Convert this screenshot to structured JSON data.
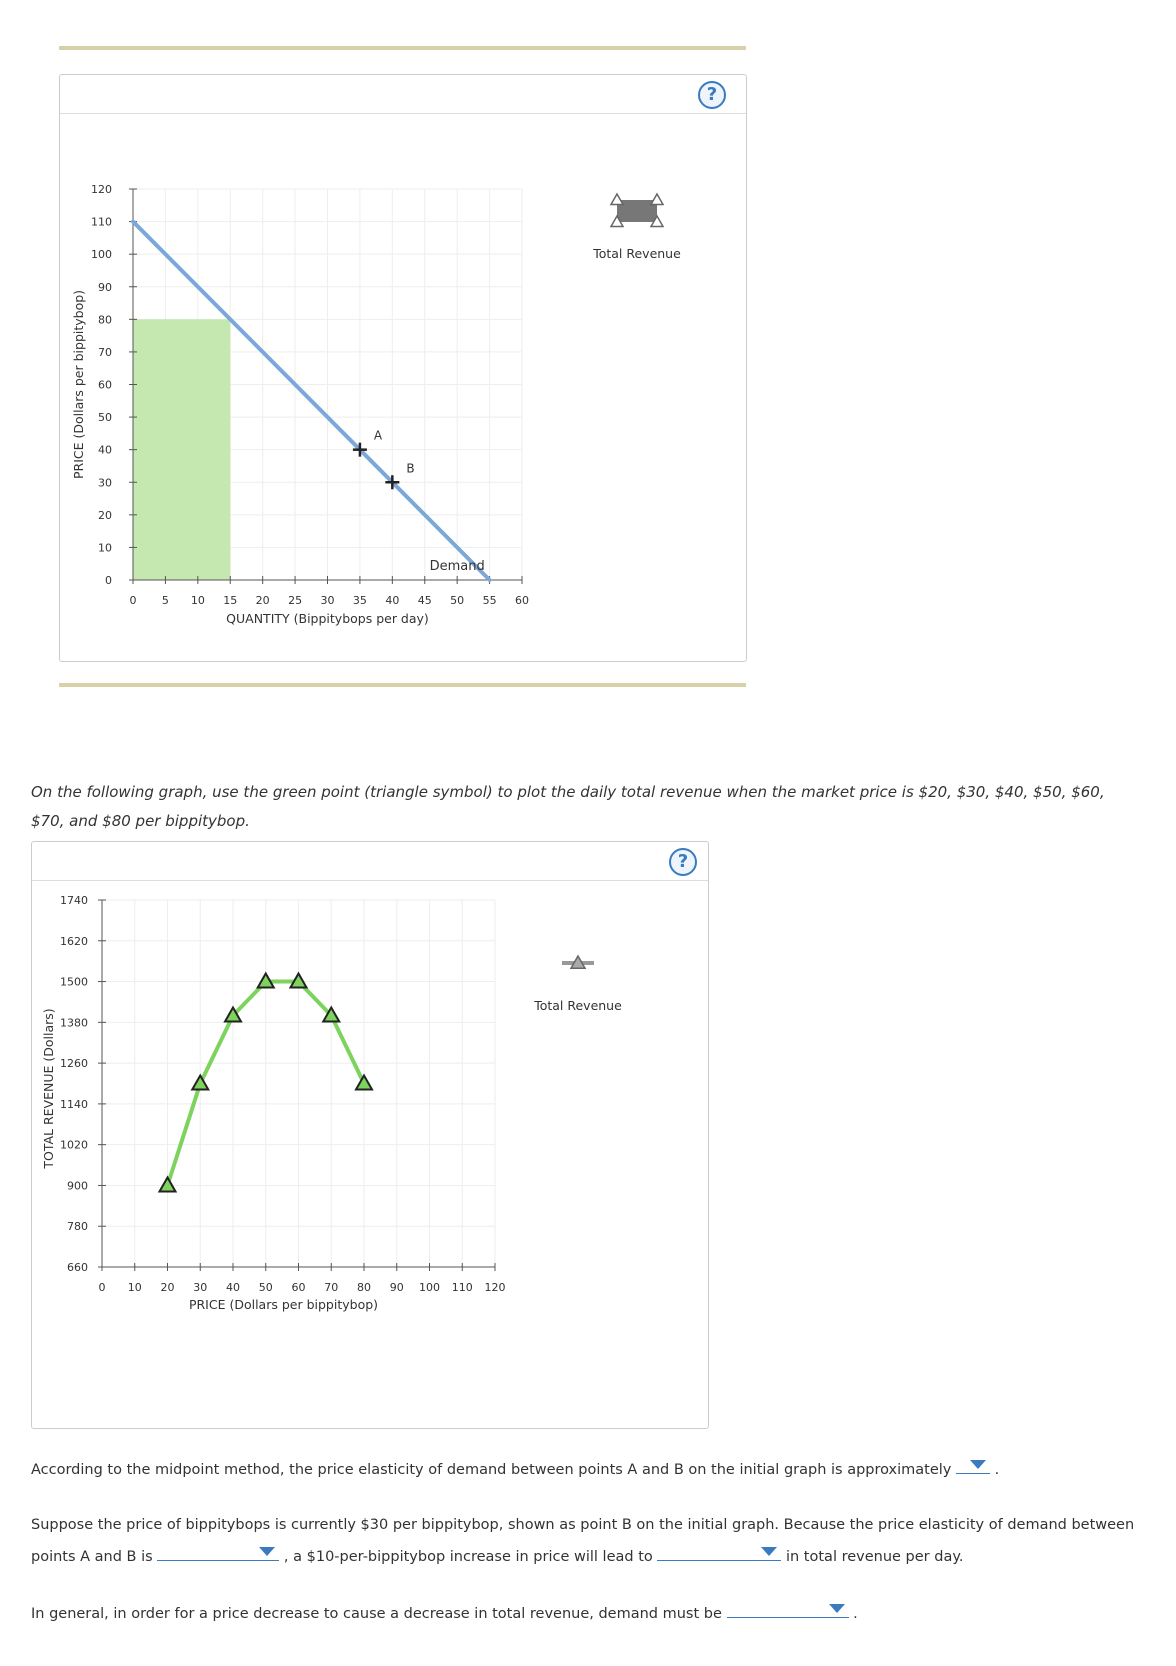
{
  "graph1": {
    "ylabel": "PRICE (Dollars per bippitybop)",
    "xlabel": "QUANTITY (Bippitybops per day)",
    "y_ticks": [
      0,
      10,
      20,
      30,
      40,
      50,
      60,
      70,
      80,
      90,
      100,
      110,
      120
    ],
    "x_ticks": [
      0,
      5,
      10,
      15,
      20,
      25,
      30,
      35,
      40,
      45,
      50,
      55,
      60
    ],
    "demand_label": "Demand",
    "legend_label": "Total Revenue",
    "help": "?",
    "point_a_label": "A",
    "point_b_label": "B"
  },
  "prompt_text": "On the following graph, use the green point (triangle symbol) to plot the daily total revenue when the market price is $20, $30, $40, $50, $60, $70, and $80 per bippitybop.",
  "graph2": {
    "ylabel": "TOTAL REVENUE (Dollars)",
    "xlabel": "PRICE (Dollars per bippitybop)",
    "y_ticks": [
      660,
      780,
      900,
      1020,
      1140,
      1260,
      1380,
      1500,
      1620,
      1740
    ],
    "x_ticks": [
      0,
      10,
      20,
      30,
      40,
      50,
      60,
      70,
      80,
      90,
      100,
      110,
      120
    ],
    "legend_label": "Total Revenue",
    "help": "?"
  },
  "questions": {
    "q1": "According to the midpoint method, the price elasticity of demand between points A and B on the initial graph is approximately",
    "q1_end": ".",
    "q2_line1": "Suppose the price of bippitybops is currently $30 per bippitybop, shown as point B on the initial graph. Because the price elasticity of demand between",
    "q2_pre": "points A and B is",
    "q2_mid": ", a $10-per-bippitybop increase in price will lead to",
    "q2_end": "in total revenue per day.",
    "q3": "In general, in order for a price decrease to cause a decrease in total revenue, demand must be",
    "q3_end": "."
  },
  "chart_data": [
    {
      "type": "line",
      "xlabel": "QUANTITY (Bippitybops per day)",
      "ylabel": "PRICE (Dollars per bippitybop)",
      "xlim": [
        0,
        60
      ],
      "ylim": [
        0,
        120
      ],
      "grid": true,
      "legend": "top-right",
      "series": [
        {
          "name": "Demand",
          "x": [
            0,
            55
          ],
          "y": [
            110,
            0
          ],
          "color": "#7ba7d9"
        }
      ],
      "points": [
        {
          "label": "A",
          "x": 35,
          "y": 40
        },
        {
          "label": "B",
          "x": 40,
          "y": 30
        }
      ],
      "shaded_area": {
        "name": "Total Revenue",
        "x": [
          0,
          15
        ],
        "y": [
          0,
          80
        ],
        "color": "#c5e8b0"
      }
    },
    {
      "type": "line",
      "xlabel": "PRICE (Dollars per bippitybop)",
      "ylabel": "TOTAL REVENUE (Dollars)",
      "xlim": [
        0,
        120
      ],
      "ylim": [
        660,
        1740
      ],
      "grid": true,
      "legend": "top-right",
      "series": [
        {
          "name": "Total Revenue",
          "x": [
            20,
            30,
            40,
            50,
            60,
            70,
            80
          ],
          "y": [
            900,
            1200,
            1400,
            1500,
            1500,
            1400,
            1200
          ],
          "color": "#7ed35e"
        }
      ]
    }
  ]
}
